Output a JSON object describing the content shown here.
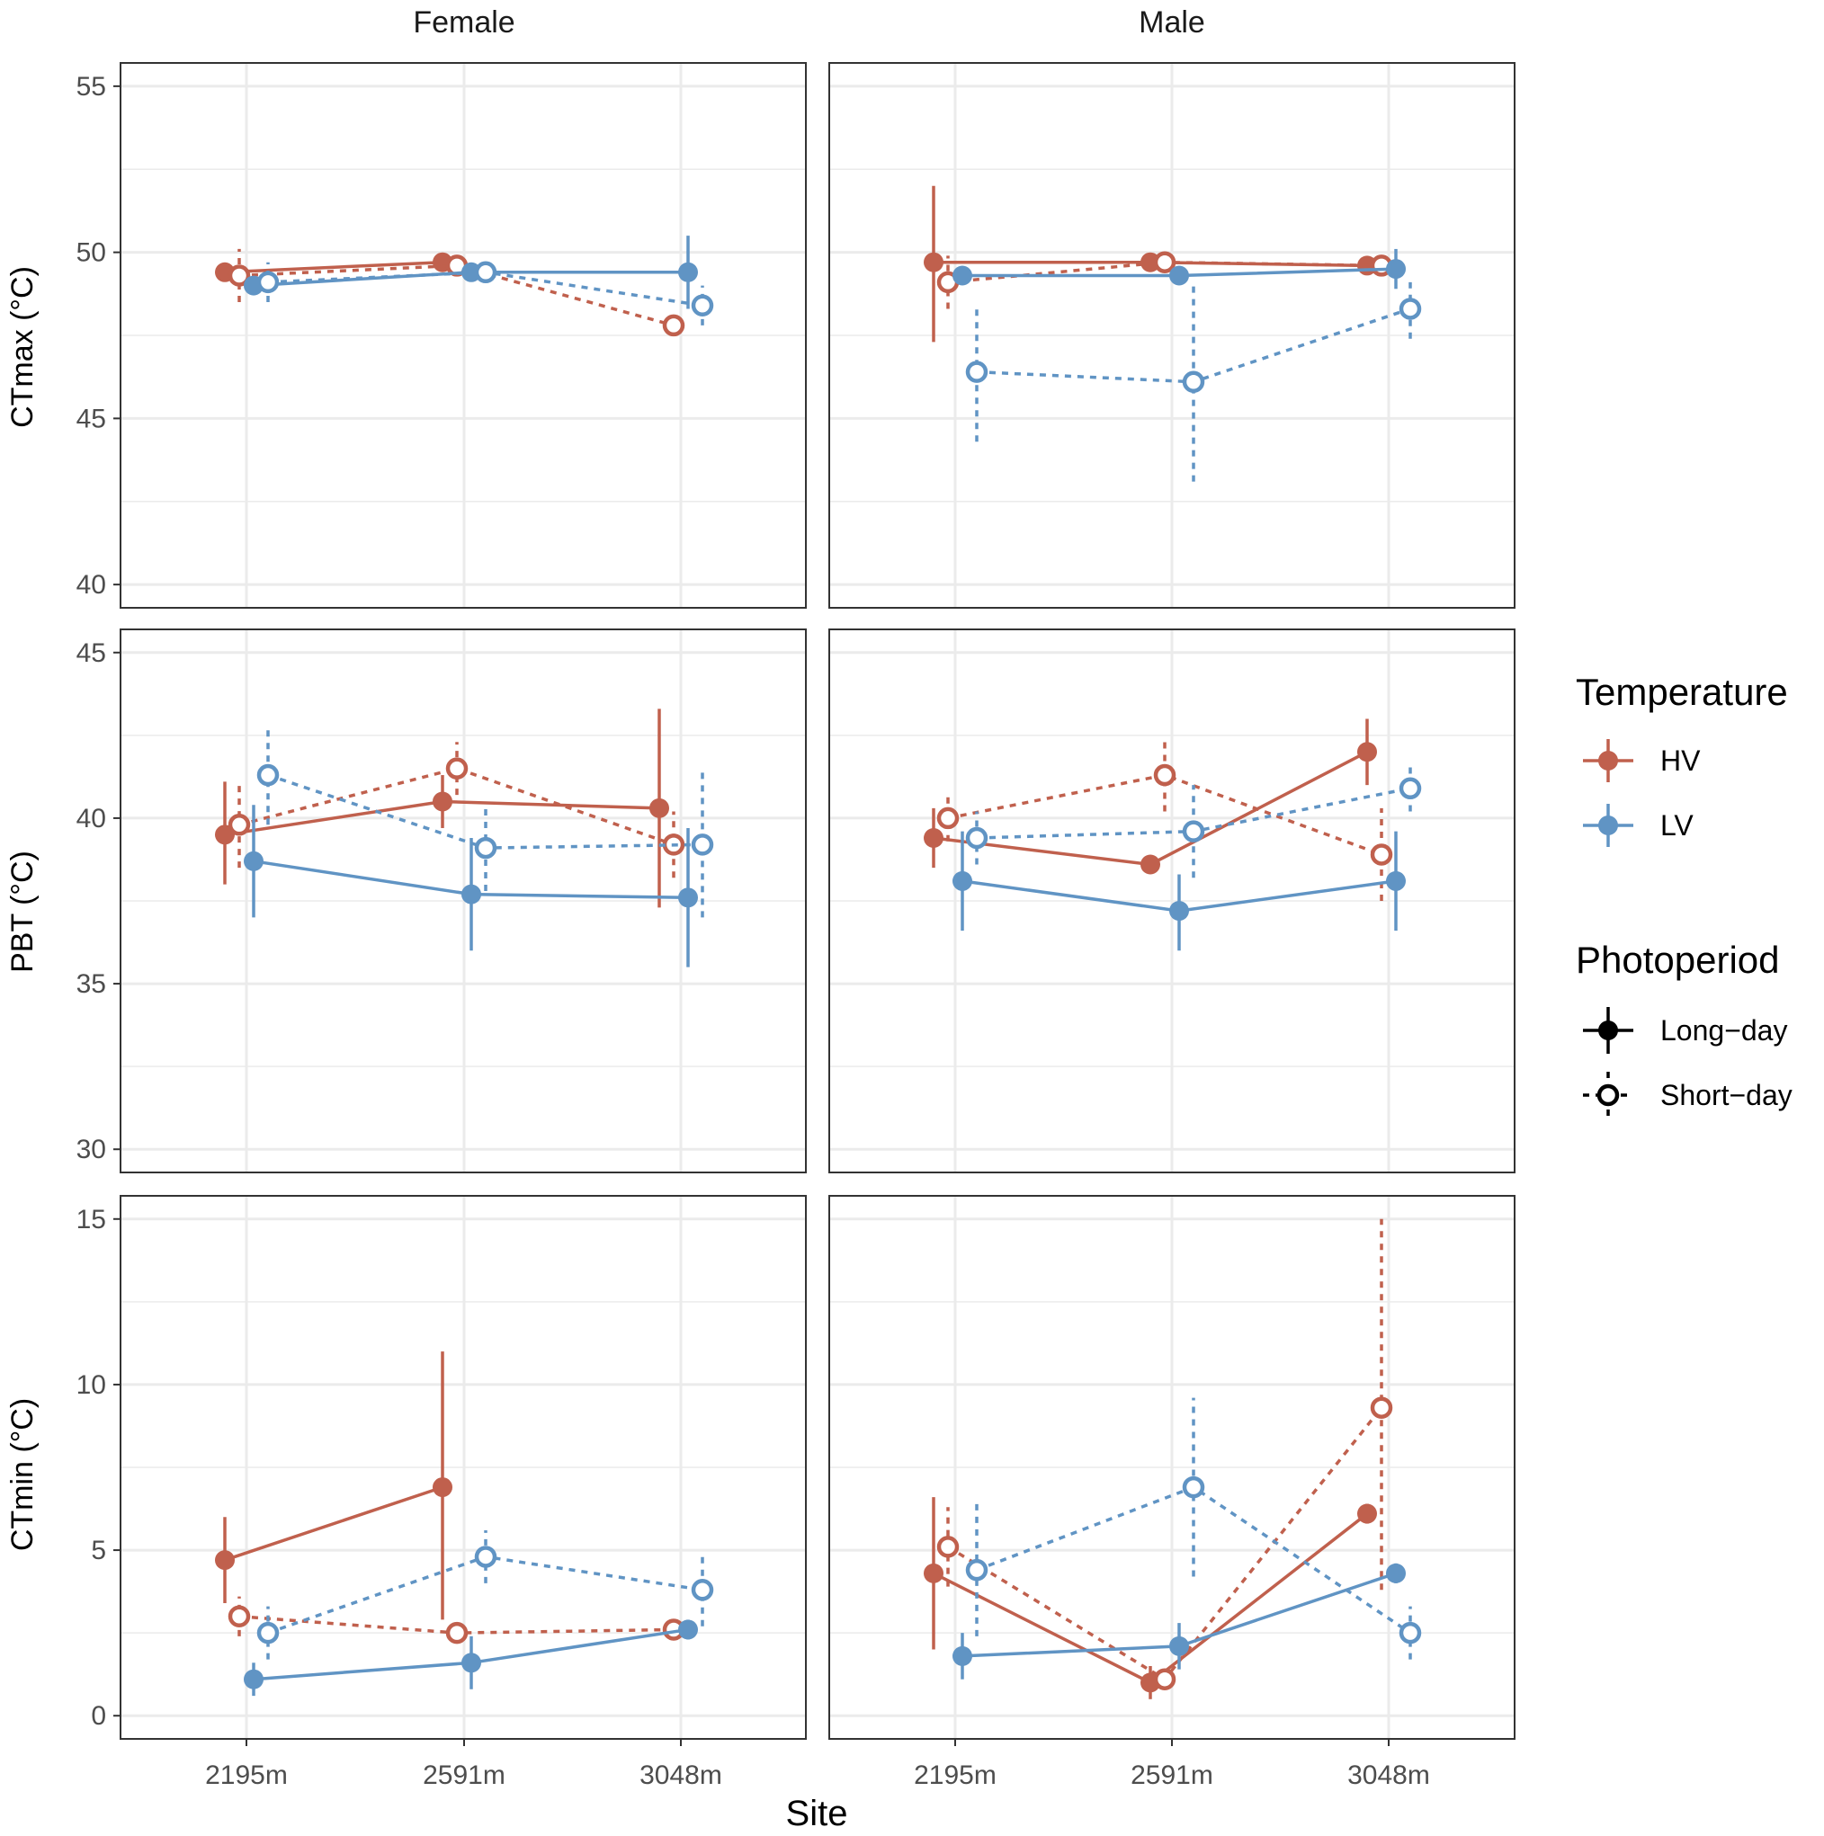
{
  "chart_data": {
    "type": "line",
    "strip_labels": [
      "Female",
      "Male"
    ],
    "x_title": "Site",
    "categories": [
      "2195m",
      "2591m",
      "3048m"
    ],
    "rows": [
      {
        "key": "ctmax",
        "ylabel": "CTmax (°C)",
        "ylim": [
          39.3,
          55.7
        ],
        "yticks": [
          40,
          45,
          50,
          55
        ]
      },
      {
        "key": "pbt",
        "ylabel": "PBT (°C)",
        "ylim": [
          29.3,
          45.7
        ],
        "yticks": [
          30,
          35,
          40,
          45
        ]
      },
      {
        "key": "ctmin",
        "ylabel": "CTmin (°C)",
        "ylim": [
          -0.7,
          15.7
        ],
        "yticks": [
          0,
          5,
          10,
          15
        ]
      }
    ],
    "legend": {
      "temperature_title": "Temperature",
      "temperature_items": [
        {
          "label": "HV",
          "color": "#c0604d"
        },
        {
          "label": "LV",
          "color": "#6094c4"
        }
      ],
      "photoperiod_title": "Photoperiod",
      "photoperiod_items": [
        {
          "label": "Long−day",
          "style": "solid"
        },
        {
          "label": "Short−day",
          "style": "dashed"
        }
      ]
    },
    "series": [
      {
        "row": "ctmax",
        "sex": "Female",
        "temp": "HV",
        "photo": "Long-day",
        "values": [
          49.4,
          49.7,
          null
        ],
        "lower": [
          49.2,
          49.5,
          null
        ],
        "upper": [
          49.6,
          49.9,
          null
        ]
      },
      {
        "row": "ctmax",
        "sex": "Female",
        "temp": "HV",
        "photo": "Short-day",
        "values": [
          49.3,
          49.6,
          47.8
        ],
        "lower": [
          48.5,
          49.3,
          47.6
        ],
        "upper": [
          50.1,
          49.9,
          48.0
        ]
      },
      {
        "row": "ctmax",
        "sex": "Female",
        "temp": "LV",
        "photo": "Long-day",
        "values": [
          49.0,
          49.4,
          49.4
        ],
        "lower": [
          48.8,
          49.2,
          48.3
        ],
        "upper": [
          49.2,
          49.6,
          50.5
        ]
      },
      {
        "row": "ctmax",
        "sex": "Female",
        "temp": "LV",
        "photo": "Short-day",
        "values": [
          49.1,
          49.4,
          48.4
        ],
        "lower": [
          48.5,
          49.1,
          47.8
        ],
        "upper": [
          49.7,
          49.7,
          49.0
        ]
      },
      {
        "row": "ctmax",
        "sex": "Male",
        "temp": "HV",
        "photo": "Long-day",
        "values": [
          49.7,
          49.7,
          49.6
        ],
        "lower": [
          47.3,
          49.5,
          49.4
        ],
        "upper": [
          52.0,
          49.9,
          49.8
        ]
      },
      {
        "row": "ctmax",
        "sex": "Male",
        "temp": "HV",
        "photo": "Short-day",
        "values": [
          49.1,
          49.7,
          49.6
        ],
        "lower": [
          48.3,
          49.4,
          49.3
        ],
        "upper": [
          49.9,
          50.0,
          49.9
        ]
      },
      {
        "row": "ctmax",
        "sex": "Male",
        "temp": "LV",
        "photo": "Long-day",
        "values": [
          49.3,
          49.3,
          49.5
        ],
        "lower": [
          49.1,
          49.1,
          48.9
        ],
        "upper": [
          49.5,
          49.5,
          50.1
        ]
      },
      {
        "row": "ctmax",
        "sex": "Male",
        "temp": "LV",
        "photo": "Short-day",
        "values": [
          46.4,
          46.1,
          48.3
        ],
        "lower": [
          44.3,
          43.1,
          47.4
        ],
        "upper": [
          48.4,
          49.1,
          49.1
        ]
      },
      {
        "row": "pbt",
        "sex": "Female",
        "temp": "HV",
        "photo": "Long-day",
        "values": [
          39.5,
          40.5,
          40.3
        ],
        "lower": [
          38.0,
          39.7,
          37.3
        ],
        "upper": [
          41.1,
          41.3,
          43.3
        ]
      },
      {
        "row": "pbt",
        "sex": "Female",
        "temp": "HV",
        "photo": "Short-day",
        "values": [
          39.8,
          41.5,
          39.2
        ],
        "lower": [
          38.5,
          40.7,
          38.2
        ],
        "upper": [
          41.1,
          42.3,
          40.2
        ]
      },
      {
        "row": "pbt",
        "sex": "Female",
        "temp": "LV",
        "photo": "Long-day",
        "values": [
          38.7,
          37.7,
          37.6
        ],
        "lower": [
          37.0,
          36.0,
          35.5
        ],
        "upper": [
          40.4,
          39.4,
          39.7
        ]
      },
      {
        "row": "pbt",
        "sex": "Female",
        "temp": "LV",
        "photo": "Short-day",
        "values": [
          41.3,
          39.1,
          39.2
        ],
        "lower": [
          39.8,
          37.8,
          37.0
        ],
        "upper": [
          42.8,
          40.4,
          41.5
        ]
      },
      {
        "row": "pbt",
        "sex": "Male",
        "temp": "HV",
        "photo": "Long-day",
        "values": [
          39.4,
          38.6,
          42.0
        ],
        "lower": [
          38.5,
          38.4,
          41.0
        ],
        "upper": [
          40.3,
          38.8,
          43.0
        ]
      },
      {
        "row": "pbt",
        "sex": "Male",
        "temp": "HV",
        "photo": "Short-day",
        "values": [
          40.0,
          41.3,
          38.9
        ],
        "lower": [
          39.3,
          40.2,
          37.5
        ],
        "upper": [
          40.7,
          42.4,
          40.3
        ]
      },
      {
        "row": "pbt",
        "sex": "Male",
        "temp": "LV",
        "photo": "Long-day",
        "values": [
          38.1,
          37.2,
          38.1
        ],
        "lower": [
          36.6,
          36.0,
          36.6
        ],
        "upper": [
          39.6,
          38.3,
          39.6
        ]
      },
      {
        "row": "pbt",
        "sex": "Male",
        "temp": "LV",
        "photo": "Short-day",
        "values": [
          39.4,
          39.6,
          40.9
        ],
        "lower": [
          38.6,
          38.2,
          40.2
        ],
        "upper": [
          40.2,
          41.0,
          41.6
        ]
      },
      {
        "row": "ctmin",
        "sex": "Female",
        "temp": "HV",
        "photo": "Long-day",
        "values": [
          4.7,
          6.9,
          null
        ],
        "lower": [
          3.4,
          2.9,
          null
        ],
        "upper": [
          6.0,
          11.0,
          null
        ]
      },
      {
        "row": "ctmin",
        "sex": "Female",
        "temp": "HV",
        "photo": "Short-day",
        "values": [
          3.0,
          2.5,
          2.6
        ],
        "lower": [
          2.4,
          2.2,
          2.4
        ],
        "upper": [
          3.6,
          2.8,
          2.8
        ]
      },
      {
        "row": "ctmin",
        "sex": "Female",
        "temp": "LV",
        "photo": "Long-day",
        "values": [
          1.1,
          1.6,
          2.6
        ],
        "lower": [
          0.6,
          0.8,
          2.3
        ],
        "upper": [
          1.6,
          2.4,
          2.9
        ]
      },
      {
        "row": "ctmin",
        "sex": "Female",
        "temp": "LV",
        "photo": "Short-day",
        "values": [
          2.5,
          4.8,
          3.8
        ],
        "lower": [
          1.7,
          4.0,
          2.7
        ],
        "upper": [
          3.3,
          5.6,
          4.9
        ]
      },
      {
        "row": "ctmin",
        "sex": "Male",
        "temp": "HV",
        "photo": "Long-day",
        "values": [
          4.3,
          1.0,
          6.1
        ],
        "lower": [
          2.0,
          0.5,
          5.8
        ],
        "upper": [
          6.6,
          1.5,
          6.4
        ]
      },
      {
        "row": "ctmin",
        "sex": "Male",
        "temp": "HV",
        "photo": "Short-day",
        "values": [
          5.1,
          1.1,
          9.3
        ],
        "lower": [
          3.9,
          0.8,
          3.8
        ],
        "upper": [
          6.3,
          1.4,
          15.0
        ]
      },
      {
        "row": "ctmin",
        "sex": "Male",
        "temp": "LV",
        "photo": "Long-day",
        "values": [
          1.8,
          2.1,
          4.3
        ],
        "lower": [
          1.1,
          1.4,
          4.0
        ],
        "upper": [
          2.5,
          2.8,
          4.6
        ]
      },
      {
        "row": "ctmin",
        "sex": "Male",
        "temp": "LV",
        "photo": "Short-day",
        "values": [
          4.4,
          6.9,
          2.5
        ],
        "lower": [
          2.4,
          4.2,
          1.7
        ],
        "upper": [
          6.4,
          9.6,
          3.3
        ]
      }
    ]
  }
}
